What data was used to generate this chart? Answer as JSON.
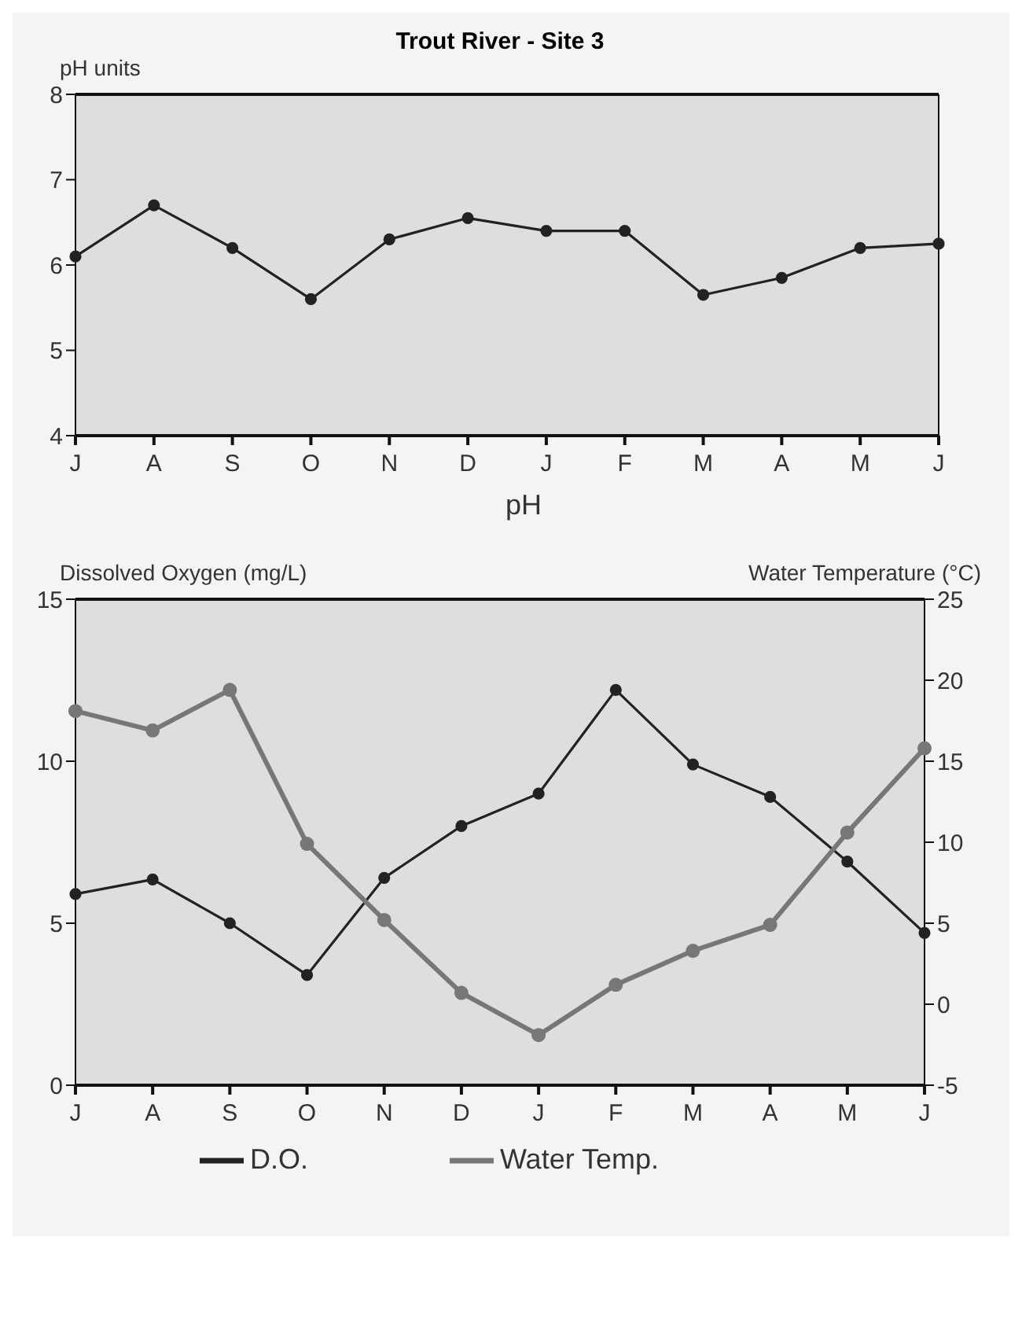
{
  "chart_data": [
    {
      "type": "line",
      "title": "Trout River - Site 3",
      "ylabel": "pH units",
      "xlabel": "pH",
      "categories": [
        "J",
        "A",
        "S",
        "O",
        "N",
        "D",
        "J",
        "F",
        "M",
        "A",
        "M",
        "J"
      ],
      "series": [
        {
          "color": "#222222",
          "values": [
            6.1,
            6.7,
            6.2,
            5.6,
            6.3,
            6.55,
            6.4,
            6.4,
            5.65,
            5.85,
            6.2,
            6.25
          ]
        }
      ],
      "ylim": [
        4,
        8
      ],
      "yticks": [
        4,
        5,
        6,
        7,
        8
      ],
      "marker": "circle",
      "line_style": "solid"
    },
    {
      "type": "line",
      "ylabel": "Dissolved Oxygen (mg/L)",
      "y2label": "Water Temperature (°C)",
      "categories": [
        "J",
        "A",
        "S",
        "O",
        "N",
        "D",
        "J",
        "F",
        "M",
        "A",
        "M",
        "J"
      ],
      "series": [
        {
          "name": "D.O.",
          "color": "#222222",
          "values": [
            5.9,
            6.35,
            5.0,
            3.4,
            6.4,
            8.0,
            9.0,
            12.2,
            9.9,
            8.9,
            6.9,
            4.7
          ]
        },
        {
          "name": "Water Temp.",
          "color": "#777777",
          "axis": "y2",
          "values": [
            18.1,
            16.9,
            19.4,
            9.9,
            5.2,
            0.7,
            -1.9,
            1.2,
            3.3,
            4.9,
            10.6,
            15.8
          ]
        }
      ],
      "ylim": [
        0,
        15
      ],
      "yticks": [
        0,
        5,
        10,
        15
      ],
      "y2lim": [
        -5,
        25
      ],
      "y2ticks": [
        -5,
        0,
        5,
        10,
        15,
        20,
        25
      ],
      "legend": "bottom",
      "marker": "circle",
      "line_style": "solid"
    }
  ]
}
